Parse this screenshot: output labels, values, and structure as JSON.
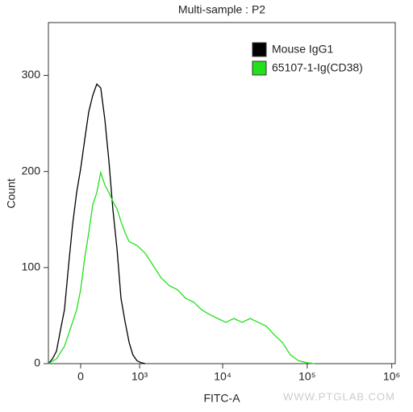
{
  "chart_data": {
    "type": "line",
    "title": "Multi-sample : P2",
    "xlabel": "FITC-A",
    "ylabel": "Count",
    "xscale": "biexponential",
    "xlim": [
      -416,
      1100000
    ],
    "ylim": [
      0,
      355
    ],
    "xticks": [
      0,
      {
        "value": 1000,
        "label": "10³"
      },
      {
        "value": 10000,
        "label": "10⁴"
      },
      {
        "value": 100000,
        "label": "10⁵"
      },
      {
        "value": 1000000,
        "label": "10⁶"
      }
    ],
    "yticks": [
      0,
      100,
      200,
      300
    ],
    "legend": "upper right",
    "watermark": "WWW.PTGLAB.COM",
    "series": [
      {
        "name": "Mouse IgG1",
        "color": "#000000",
        "x": [
          -416,
          -354,
          -296,
          -241,
          -190,
          -140,
          -93,
          -46,
          0,
          46,
          93,
          140,
          190,
          241,
          296,
          354,
          416,
          486,
          558,
          641,
          727,
          819,
          924,
          1041,
          1175
        ],
        "values": [
          0,
          5,
          13,
          35,
          56,
          102,
          144,
          178,
          203,
          233,
          262,
          279,
          291,
          287,
          254,
          211,
          161,
          119,
          68,
          43,
          22,
          9,
          3,
          1,
          0
        ]
      },
      {
        "name": "65107-1-Ig(CD38)",
        "color": "#22e01a",
        "x": [
          -416,
          -296,
          -190,
          -93,
          -46,
          0,
          46,
          93,
          140,
          190,
          241,
          296,
          354,
          416,
          486,
          558,
          641,
          727,
          924,
          1175,
          1484,
          1860,
          2328,
          2909,
          3628,
          4531,
          5639,
          7023,
          8736,
          10910,
          13585,
          16970,
          21110,
          26334,
          32771,
          40839,
          50870,
          63370,
          79000,
          98440,
          122500
        ],
        "values": [
          0,
          5,
          18,
          43,
          56,
          77,
          110,
          136,
          165,
          178,
          199,
          186,
          178,
          169,
          161,
          148,
          136,
          127,
          123,
          115,
          102,
          89,
          81,
          77,
          68,
          64,
          56,
          51,
          47,
          43,
          47,
          43,
          47,
          43,
          39,
          30,
          22,
          9,
          3,
          1,
          0
        ]
      }
    ]
  }
}
